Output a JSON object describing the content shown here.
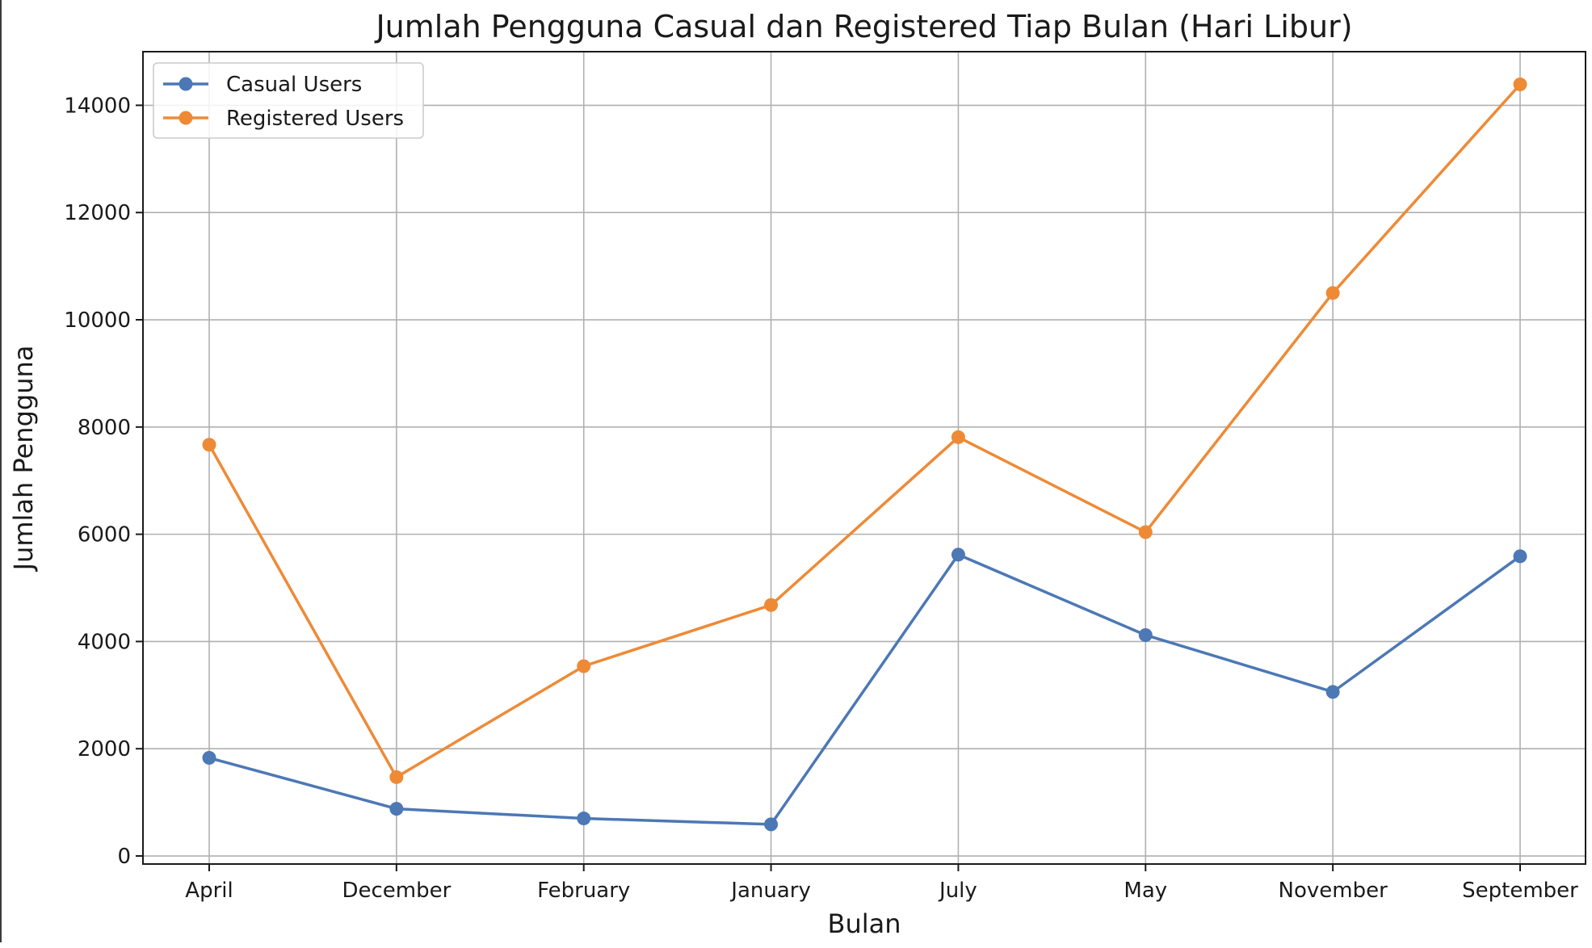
{
  "chart_data": {
    "type": "line",
    "title": "Jumlah Pengguna Casual dan Registered Tiap Bulan (Hari Libur)",
    "xlabel": "Bulan",
    "ylabel": "Jumlah Pengguna",
    "categories": [
      "April",
      "December",
      "February",
      "January",
      "July",
      "May",
      "November",
      "September"
    ],
    "ylim": [
      -150,
      15000
    ],
    "yticks": [
      0,
      2000,
      4000,
      6000,
      8000,
      10000,
      12000,
      14000
    ],
    "ytick_labels": [
      "0",
      "2000",
      "4000",
      "6000",
      "8000",
      "10000",
      "12000",
      "14000"
    ],
    "grid": true,
    "legend_position": "top-left",
    "series": [
      {
        "name": "Casual Users",
        "color": "#4c78b5",
        "marker": "circle",
        "values": [
          1830,
          880,
          700,
          590,
          5620,
          4120,
          3060,
          5590
        ]
      },
      {
        "name": "Registered Users",
        "color": "#ee8a36",
        "marker": "circle",
        "values": [
          7670,
          1470,
          3540,
          4680,
          7810,
          6040,
          10500,
          14390
        ]
      }
    ]
  }
}
